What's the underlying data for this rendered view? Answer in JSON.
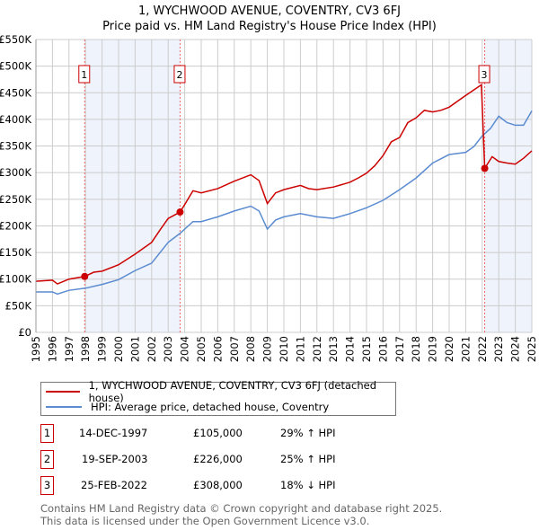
{
  "title": "1, WYCHWOOD AVENUE, COVENTRY, CV3 6FJ",
  "subtitle": "Price paid vs. HM Land Registry's House Price Index (HPI)",
  "colors": {
    "property": "#cc0000",
    "hpi": "#5b8bd0",
    "shade": "#eef3fc",
    "grid": "#cccccc"
  },
  "chart_data": {
    "type": "line",
    "title": "1, WYCHWOOD AVENUE, COVENTRY, CV3 6FJ",
    "subtitle": "Price paid vs. HM Land Registry's House Price Index (HPI)",
    "xlim": [
      1995,
      2025
    ],
    "ylim": [
      0,
      550000
    ],
    "x_ticks": [
      "1995",
      "1996",
      "1997",
      "1998",
      "1999",
      "2000",
      "2001",
      "2002",
      "2003",
      "2004",
      "2005",
      "2006",
      "2007",
      "2008",
      "2009",
      "2010",
      "2011",
      "2012",
      "2013",
      "2014",
      "2015",
      "2016",
      "2017",
      "2018",
      "2019",
      "2020",
      "2021",
      "2022",
      "2023",
      "2024",
      "2025"
    ],
    "y_ticks": [
      {
        "v": 0,
        "label": "£0"
      },
      {
        "v": 50000,
        "label": "£50K"
      },
      {
        "v": 100000,
        "label": "£100K"
      },
      {
        "v": 150000,
        "label": "£150K"
      },
      {
        "v": 200000,
        "label": "£200K"
      },
      {
        "v": 250000,
        "label": "£250K"
      },
      {
        "v": 300000,
        "label": "£300K"
      },
      {
        "v": 350000,
        "label": "£350K"
      },
      {
        "v": 400000,
        "label": "£400K"
      },
      {
        "v": 450000,
        "label": "£450K"
      },
      {
        "v": 500000,
        "label": "£500K"
      },
      {
        "v": 550000,
        "label": "£550K"
      }
    ],
    "grid": true,
    "series": [
      {
        "name": "1, WYCHWOOD AVENUE, COVENTRY, CV3 6FJ (detached house)",
        "color": "#cc0000",
        "points": [
          [
            1995,
            96000
          ],
          [
            1996,
            98000
          ],
          [
            1996.3,
            91000
          ],
          [
            1997,
            100000
          ],
          [
            1997.95,
            105000
          ],
          [
            1998.5,
            113000
          ],
          [
            1999,
            115000
          ],
          [
            2000,
            127000
          ],
          [
            2001,
            147000
          ],
          [
            2002,
            169000
          ],
          [
            2002.5,
            192000
          ],
          [
            2003,
            214000
          ],
          [
            2003.72,
            226000
          ],
          [
            2004,
            240000
          ],
          [
            2004.5,
            266000
          ],
          [
            2005,
            262000
          ],
          [
            2006,
            270000
          ],
          [
            2007,
            284000
          ],
          [
            2008,
            296000
          ],
          [
            2008.5,
            285000
          ],
          [
            2009,
            242000
          ],
          [
            2009.5,
            262000
          ],
          [
            2010,
            268000
          ],
          [
            2011,
            276000
          ],
          [
            2011.5,
            270000
          ],
          [
            2012,
            268000
          ],
          [
            2013,
            273000
          ],
          [
            2014,
            282000
          ],
          [
            2014.5,
            290000
          ],
          [
            2015,
            299000
          ],
          [
            2015.5,
            313000
          ],
          [
            2016,
            332000
          ],
          [
            2016.5,
            358000
          ],
          [
            2017,
            366000
          ],
          [
            2017.5,
            394000
          ],
          [
            2018,
            403000
          ],
          [
            2018.5,
            417000
          ],
          [
            2019,
            414000
          ],
          [
            2019.5,
            417000
          ],
          [
            2020,
            423000
          ],
          [
            2020.5,
            434000
          ],
          [
            2021,
            445000
          ],
          [
            2021.95,
            465000
          ],
          [
            2022.15,
            308000
          ],
          [
            2022.6,
            330000
          ],
          [
            2023,
            321000
          ],
          [
            2023.5,
            318000
          ],
          [
            2024,
            316000
          ],
          [
            2024.5,
            327000
          ],
          [
            2025,
            341000
          ]
        ]
      },
      {
        "name": "HPI: Average price, detached house, Coventry",
        "color": "#5b8bd0",
        "points": [
          [
            1995,
            76000
          ],
          [
            1996,
            76000
          ],
          [
            1996.3,
            72000
          ],
          [
            1997,
            79000
          ],
          [
            1998,
            83000
          ],
          [
            1999,
            90000
          ],
          [
            2000,
            99000
          ],
          [
            2001,
            116000
          ],
          [
            2002,
            130000
          ],
          [
            2003,
            169000
          ],
          [
            2003.72,
            186000
          ],
          [
            2004.5,
            208000
          ],
          [
            2005,
            208000
          ],
          [
            2006,
            217000
          ],
          [
            2007,
            228000
          ],
          [
            2008,
            237000
          ],
          [
            2008.5,
            228000
          ],
          [
            2009,
            194000
          ],
          [
            2009.5,
            211000
          ],
          [
            2010,
            217000
          ],
          [
            2011,
            223000
          ],
          [
            2012,
            217000
          ],
          [
            2013,
            214000
          ],
          [
            2014,
            223000
          ],
          [
            2015,
            234000
          ],
          [
            2016,
            248000
          ],
          [
            2017,
            268000
          ],
          [
            2018,
            290000
          ],
          [
            2019,
            318000
          ],
          [
            2020,
            334000
          ],
          [
            2021,
            338000
          ],
          [
            2021.5,
            349000
          ],
          [
            2022,
            369000
          ],
          [
            2022.5,
            383000
          ],
          [
            2023,
            406000
          ],
          [
            2023.5,
            394000
          ],
          [
            2024,
            389000
          ],
          [
            2024.5,
            389000
          ],
          [
            2025,
            416000
          ]
        ]
      }
    ],
    "sales": [
      {
        "id": "1",
        "x": 1997.95,
        "y": 105000
      },
      {
        "id": "2",
        "x": 2003.72,
        "y": 226000
      },
      {
        "id": "3",
        "x": 2022.15,
        "y": 308000
      }
    ],
    "shaded": [
      [
        1997.95,
        2003.72
      ],
      [
        2022.15,
        2025
      ]
    ]
  },
  "legend": {
    "property": "1, WYCHWOOD AVENUE, COVENTRY, CV3 6FJ (detached house)",
    "hpi": "HPI: Average price, detached house, Coventry"
  },
  "transactions": [
    {
      "id": "1",
      "date": "14-DEC-1997",
      "price": "£105,000",
      "hpi": "29% ↑ HPI"
    },
    {
      "id": "2",
      "date": "19-SEP-2003",
      "price": "£226,000",
      "hpi": "25% ↑ HPI"
    },
    {
      "id": "3",
      "date": "25-FEB-2022",
      "price": "£308,000",
      "hpi": "18% ↓ HPI"
    }
  ],
  "footer": {
    "line1": "Contains HM Land Registry data © Crown copyright and database right 2025.",
    "line2": "This data is licensed under the Open Government Licence v3.0."
  }
}
